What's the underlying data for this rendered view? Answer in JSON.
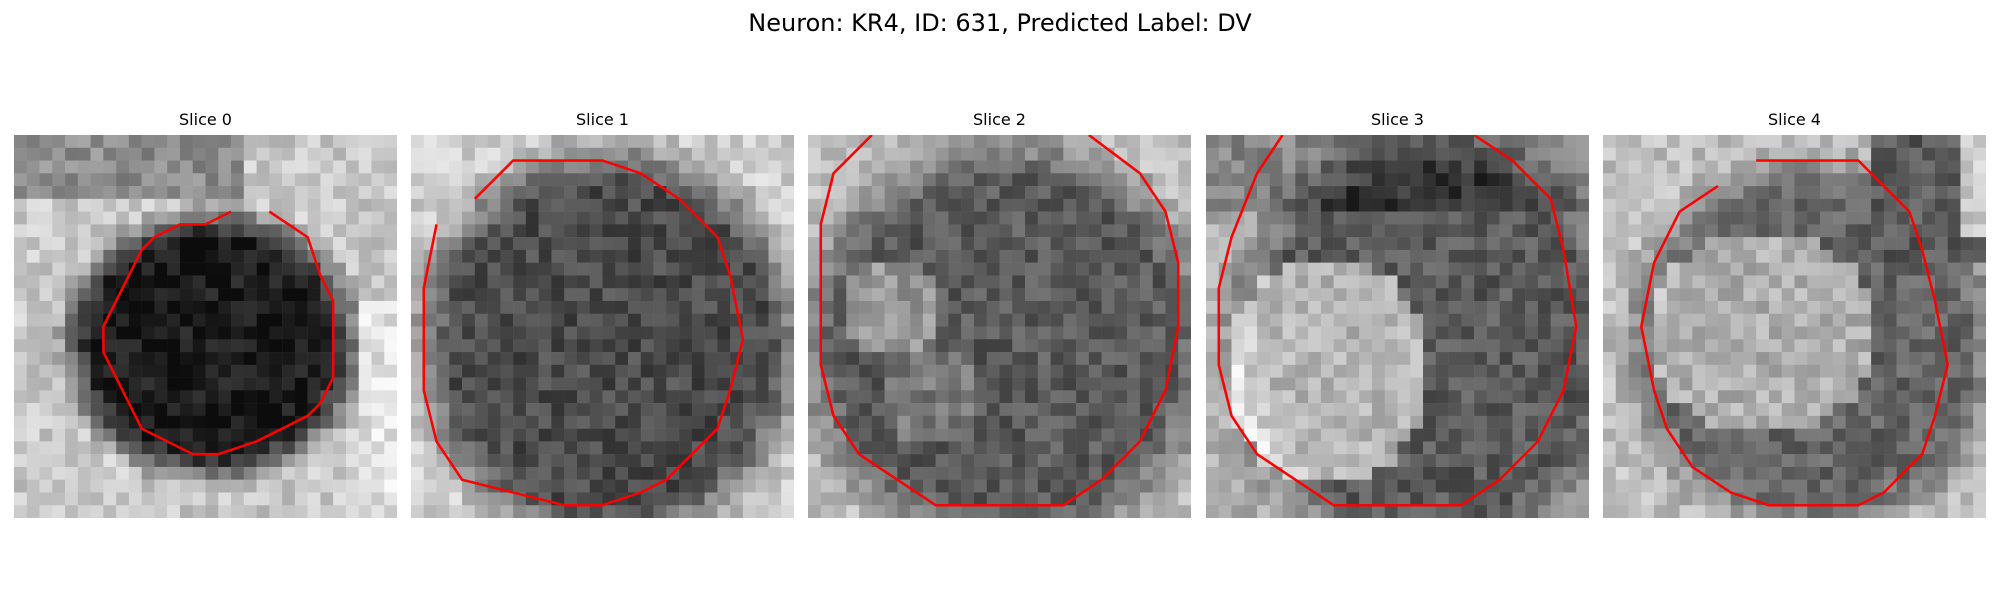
{
  "figure": {
    "title": "Neuron: KR4, ID: 631, Predicted Label: DV"
  },
  "contour_color": "#ff0000",
  "panels": [
    {
      "title": "Slice 0"
    },
    {
      "title": "Slice 1"
    },
    {
      "title": "Slice 2"
    },
    {
      "title": "Slice 3"
    },
    {
      "title": "Slice 4"
    }
  ]
}
